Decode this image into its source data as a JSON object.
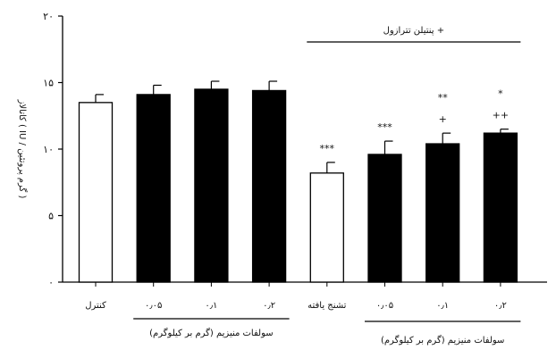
{
  "chart_data": {
    "type": "bar",
    "ylabel": "کاتالاز ( IU / گرم پروتئین )",
    "ylim": [
      0,
      20
    ],
    "yticks": [
      {
        "value": 0,
        "label": "۰"
      },
      {
        "value": 5,
        "label": "۵"
      },
      {
        "value": 10,
        "label": "۱۰"
      },
      {
        "value": 15,
        "label": "۱۵"
      },
      {
        "value": 20,
        "label": "۲۰"
      }
    ],
    "categories": [
      "کنترل",
      "۰٫۰۵",
      "۰٫۱",
      "۰٫۲",
      "تشنج یافته",
      "۰٫۰۵",
      "۰٫۱",
      "۰٫۲"
    ],
    "values": [
      13.5,
      14.1,
      14.5,
      14.4,
      8.2,
      9.6,
      10.4,
      11.2
    ],
    "errors": [
      0.6,
      0.7,
      0.6,
      0.7,
      0.8,
      1.0,
      0.8,
      0.3
    ],
    "fills": [
      "#ffffff",
      "#000000",
      "#000000",
      "#000000",
      "#ffffff",
      "#000000",
      "#000000",
      "#000000"
    ],
    "significance": [
      {
        "bar": 4,
        "lines": [
          "***"
        ]
      },
      {
        "bar": 5,
        "lines": [
          "***"
        ]
      },
      {
        "bar": 6,
        "lines": [
          "**",
          "+"
        ]
      },
      {
        "bar": 7,
        "lines": [
          "*",
          "++"
        ]
      }
    ],
    "groups": [
      {
        "label": "سولفات منیزیم (گرم بر کیلوگرم)",
        "from": 1,
        "to": 3,
        "position": "bottom"
      },
      {
        "label": "سولفات منیزیم (گرم بر کیلوگرم)",
        "from": 5,
        "to": 7,
        "position": "bottom"
      },
      {
        "label": "پنتیلن تترازول +",
        "from": 4,
        "to": 7,
        "position": "top"
      }
    ]
  }
}
